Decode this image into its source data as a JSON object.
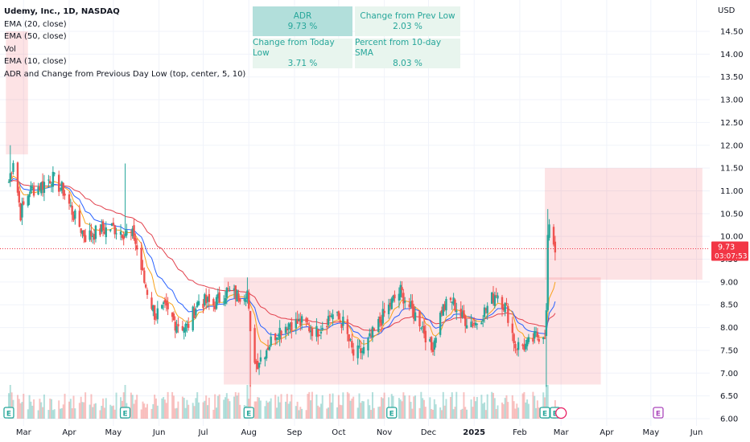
{
  "legend": {
    "title": "Udemy, Inc., 1D, NASDAQ",
    "lines": [
      "EMA (20, close)",
      "EMA (50, close)",
      "Vol",
      "EMA (10, close)",
      "ADR and Change from Previous Day Low (top, center, 5, 10)"
    ]
  },
  "stats_table": [
    {
      "label": "ADR",
      "value": "9.73 %",
      "highlight": true
    },
    {
      "label": "Change from Prev Low",
      "value": "2.03 %",
      "highlight": false
    },
    {
      "label": "Change from Today Low",
      "value": "3.71 %",
      "highlight": false
    },
    {
      "label": "Percent from 10-day SMA",
      "value": "8.03 %",
      "highlight": false
    }
  ],
  "currency": "USD",
  "price_label": {
    "value": "9.73",
    "countdown": "03:07:53",
    "color": "#f23645"
  },
  "colors": {
    "up": "#26a69a",
    "down": "#ef5350",
    "ema10": "#f7a21b",
    "ema20": "#2962ff",
    "ema50": "#e2404c",
    "zone": "#f23645",
    "earnings": "#26a69a",
    "earnings_future": "#ab47bc"
  },
  "chart_data": {
    "type": "candlestick",
    "title": "Udemy, Inc., 1D, NASDAQ",
    "y_axis": {
      "min": 6.0,
      "max": 14.5,
      "ticks": [
        "6.00",
        "6.50",
        "7.00",
        "7.50",
        "8.00",
        "8.50",
        "9.00",
        "9.50",
        "10.00",
        "10.50",
        "11.00",
        "11.50",
        "12.00",
        "12.50",
        "13.00",
        "13.50",
        "14.00",
        "14.50"
      ]
    },
    "x_axis": {
      "ticks": [
        "Mar",
        "Apr",
        "May",
        "Jun",
        "Jul",
        "Aug",
        "Sep",
        "Oct",
        "Nov",
        "Dec",
        "2025",
        "Feb",
        "Mar",
        "Apr",
        "May",
        "Jun"
      ]
    },
    "anchors": [
      [
        "2024-02-20",
        11.2
      ],
      [
        "2024-02-23",
        11.7
      ],
      [
        "2024-02-28",
        10.5
      ],
      [
        "2024-03-05",
        11.0
      ],
      [
        "2024-03-12",
        11.1
      ],
      [
        "2024-03-20",
        11.3
      ],
      [
        "2024-03-28",
        11.0
      ],
      [
        "2024-04-05",
        10.4
      ],
      [
        "2024-04-12",
        10.0
      ],
      [
        "2024-04-20",
        10.1
      ],
      [
        "2024-04-30",
        10.2
      ],
      [
        "2024-05-08",
        10.1
      ],
      [
        "2024-05-15",
        10.0
      ],
      [
        "2024-05-22",
        9.0
      ],
      [
        "2024-05-29",
        8.3
      ],
      [
        "2024-06-05",
        8.4
      ],
      [
        "2024-06-12",
        8.1
      ],
      [
        "2024-06-20",
        8.0
      ],
      [
        "2024-06-28",
        8.6
      ],
      [
        "2024-07-08",
        8.5
      ],
      [
        "2024-07-17",
        8.8
      ],
      [
        "2024-07-24",
        8.7
      ],
      [
        "2024-07-31",
        8.8
      ],
      [
        "2024-08-02",
        7.8
      ],
      [
        "2024-08-06",
        7.2
      ],
      [
        "2024-08-12",
        7.5
      ],
      [
        "2024-08-20",
        7.9
      ],
      [
        "2024-08-28",
        8.1
      ],
      [
        "2024-09-06",
        8.1
      ],
      [
        "2024-09-16",
        7.9
      ],
      [
        "2024-09-26",
        8.3
      ],
      [
        "2024-10-04",
        8.1
      ],
      [
        "2024-10-11",
        7.4
      ],
      [
        "2024-10-18",
        7.5
      ],
      [
        "2024-10-25",
        7.9
      ],
      [
        "2024-11-01",
        8.3
      ],
      [
        "2024-11-07",
        8.6
      ],
      [
        "2024-11-12",
        8.8
      ],
      [
        "2024-11-19",
        8.4
      ],
      [
        "2024-11-26",
        8.1
      ],
      [
        "2024-12-03",
        7.5
      ],
      [
        "2024-12-10",
        8.4
      ],
      [
        "2024-12-17",
        8.6
      ],
      [
        "2024-12-24",
        8.2
      ],
      [
        "2025-01-02",
        8.1
      ],
      [
        "2025-01-09",
        8.4
      ],
      [
        "2025-01-16",
        8.8
      ],
      [
        "2025-01-23",
        8.4
      ],
      [
        "2025-01-29",
        7.6
      ],
      [
        "2025-02-06",
        7.6
      ],
      [
        "2025-02-12",
        7.8
      ],
      [
        "2025-02-18",
        7.9
      ],
      [
        "2025-02-19",
        8.3
      ],
      [
        "2025-02-20",
        10.0
      ],
      [
        "2025-02-21",
        10.1
      ],
      [
        "2025-02-24",
        9.9
      ],
      [
        "2025-02-25",
        9.7
      ]
    ],
    "spikes": [
      [
        "2024-02-21",
        12.0
      ],
      [
        "2024-05-09",
        11.6
      ],
      [
        "2024-08-02",
        6.7
      ],
      [
        "2024-07-31",
        9.1
      ],
      [
        "2025-02-19",
        6.7
      ],
      [
        "2025-02-20",
        10.6
      ]
    ],
    "zones": [
      {
        "start": "2024-02-18",
        "end": "2024-03-04",
        "low": 11.8,
        "high": 14.5
      },
      {
        "start": "2024-07-15",
        "end": "2025-03-28",
        "low": 6.75,
        "high": 9.1
      },
      {
        "start": "2025-02-18",
        "end": "2025-06-05",
        "low": 9.05,
        "high": 11.5
      }
    ],
    "earnings": [
      {
        "date": "2024-02-20",
        "future": false
      },
      {
        "date": "2024-05-09",
        "future": false
      },
      {
        "date": "2024-08-01",
        "future": false
      },
      {
        "date": "2024-11-06",
        "future": false
      },
      {
        "date": "2025-02-18",
        "future": false
      },
      {
        "date": "2025-02-25",
        "future": false
      },
      {
        "date": "2025-05-06",
        "future": true
      }
    ],
    "volume_scale": [
      0,
      1
    ]
  }
}
